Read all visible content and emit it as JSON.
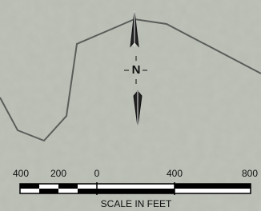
{
  "north_arrow": {
    "label": "N"
  },
  "scale": {
    "labels": [
      "400",
      "200",
      "0",
      "400",
      "800"
    ],
    "title": "SCALE IN FEET"
  }
}
